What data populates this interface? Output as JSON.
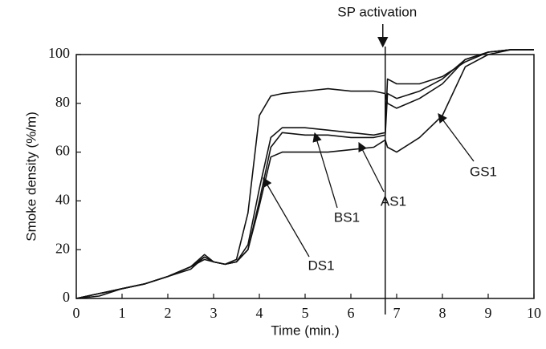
{
  "chart_data": {
    "type": "line",
    "xlabel": "Time (min.)",
    "ylabel": "Smoke density (%/m)",
    "x": [
      0,
      0.5,
      1,
      1.5,
      2,
      2.5,
      2.8,
      3,
      3.25,
      3.5,
      3.75,
      4,
      4.25,
      4.5,
      5,
      5.5,
      6,
      6.5,
      6.75,
      6.8,
      7,
      7.5,
      8,
      8.5,
      9,
      9.5,
      10
    ],
    "series": [
      {
        "name": "DS1",
        "color": "#111111",
        "values": [
          0,
          2,
          4,
          6,
          9,
          13,
          17,
          15,
          14,
          16,
          35,
          75,
          83,
          84,
          85,
          86,
          85,
          85,
          84,
          80,
          78,
          82,
          88,
          98,
          101,
          102,
          102
        ]
      },
      {
        "name": "BS1",
        "color": "#111111",
        "values": [
          0,
          2,
          4,
          6,
          9,
          13,
          18,
          15,
          14,
          15,
          22,
          45,
          66,
          70,
          70,
          69,
          68,
          67,
          68,
          90,
          88,
          88,
          91,
          97,
          101,
          102,
          102
        ]
      },
      {
        "name": "AS1",
        "color": "#111111",
        "values": [
          0,
          2,
          4,
          6,
          9,
          13,
          16,
          15,
          14,
          15,
          20,
          40,
          62,
          68,
          67,
          67,
          66,
          66,
          67,
          84,
          82,
          85,
          90,
          98,
          101,
          102,
          102
        ]
      },
      {
        "name": "GS1",
        "color": "#111111",
        "values": [
          0,
          1,
          4,
          6,
          9,
          12,
          17,
          15,
          14,
          15,
          20,
          38,
          58,
          60,
          60,
          60,
          61,
          62,
          65,
          62,
          60,
          66,
          75,
          95,
          100,
          102,
          102
        ]
      }
    ],
    "annotations": [
      {
        "text": "SP activation",
        "x": 6.75
      }
    ],
    "xlim": [
      0,
      10
    ],
    "xticks": [
      0,
      1,
      2,
      3,
      4,
      5,
      6,
      7,
      8,
      9,
      10
    ],
    "ylim": [
      0,
      100
    ],
    "yticks": [
      0,
      20,
      40,
      60,
      80,
      100
    ],
    "grid": false
  }
}
